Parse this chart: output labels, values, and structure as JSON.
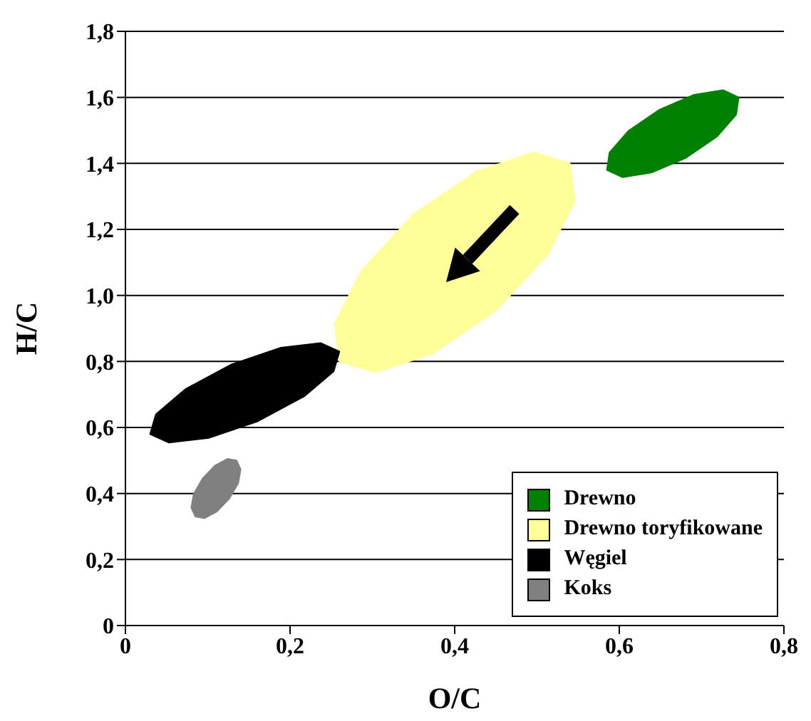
{
  "chart_data": {
    "type": "area",
    "xlabel": "O/C",
    "ylabel": "H/C",
    "xlim": [
      0,
      0.8
    ],
    "ylim": [
      0,
      1.8
    ],
    "xticks": [
      0,
      {
        "value": 0.2,
        "label": "0,2"
      },
      {
        "value": 0.4,
        "label": "0,4"
      },
      {
        "value": 0.6,
        "label": "0,6"
      },
      {
        "value": 0.8,
        "label": "0,8"
      }
    ],
    "yticks": [
      0,
      {
        "value": 0.2,
        "label": "0,2"
      },
      {
        "value": 0.4,
        "label": "0,4"
      },
      {
        "value": 0.6,
        "label": "0,6"
      },
      {
        "value": 0.8,
        "label": "0,8"
      },
      {
        "value": 1.0,
        "label": "1,0"
      },
      {
        "value": 1.2,
        "label": "1,2"
      },
      {
        "value": 1.4,
        "label": "1,4"
      },
      {
        "value": 1.6,
        "label": "1,6"
      },
      {
        "value": 1.8,
        "label": "1,8"
      }
    ],
    "grid": "y",
    "legend": "bottom right",
    "series": [
      {
        "name": "Drewno",
        "color": "#008000",
        "x": [
          0.745,
          0.742,
          0.719,
          0.681,
          0.639,
          0.604,
          0.585,
          0.588,
          0.611,
          0.649,
          0.691,
          0.726
        ],
        "values": [
          1.6,
          1.548,
          1.482,
          1.417,
          1.372,
          1.358,
          1.38,
          1.432,
          1.498,
          1.563,
          1.608,
          1.622
        ]
      },
      {
        "name": "Drewno toryfikowane",
        "color": "#ffff99",
        "x": [
          0.54,
          0.546,
          0.513,
          0.45,
          0.373,
          0.304,
          0.26,
          0.254,
          0.287,
          0.35,
          0.427,
          0.496
        ],
        "values": [
          1.4,
          1.287,
          1.124,
          0.954,
          0.824,
          0.767,
          0.8,
          0.913,
          1.076,
          1.246,
          1.376,
          1.433
        ]
      },
      {
        "name": "Węgiel",
        "color": "#000000",
        "x": [
          0.26,
          0.253,
          0.217,
          0.161,
          0.101,
          0.053,
          0.03,
          0.037,
          0.073,
          0.129,
          0.189,
          0.237
        ],
        "values": [
          0.83,
          0.77,
          0.694,
          0.619,
          0.568,
          0.554,
          0.58,
          0.64,
          0.716,
          0.791,
          0.842,
          0.856
        ]
      },
      {
        "name": "Koks",
        "color": "#808080",
        "x": [
          0.135,
          0.14,
          0.137,
          0.126,
          0.111,
          0.096,
          0.085,
          0.08,
          0.083,
          0.094,
          0.109,
          0.124
        ],
        "values": [
          0.5,
          0.473,
          0.431,
          0.384,
          0.345,
          0.325,
          0.33,
          0.357,
          0.399,
          0.446,
          0.485,
          0.505
        ]
      }
    ]
  }
}
